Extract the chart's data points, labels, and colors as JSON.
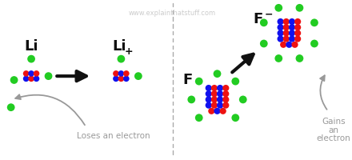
{
  "bg_color": "#ffffff",
  "red_color": "#ee1111",
  "blue_color": "#1111ee",
  "green_color": "#22cc22",
  "gray_text": "#999999",
  "black_arrow": "#111111",
  "label_color": "#111111",
  "watermark_color": "#cccccc",
  "loses_text": "Loses an electron",
  "gains_text_lines": [
    "Gains",
    "an",
    "electron"
  ],
  "footnote": "www.explainthatstuff.com",
  "li_label": "Li",
  "li_plus_label": "Li",
  "f_label": "F",
  "f_minus_label": "F"
}
